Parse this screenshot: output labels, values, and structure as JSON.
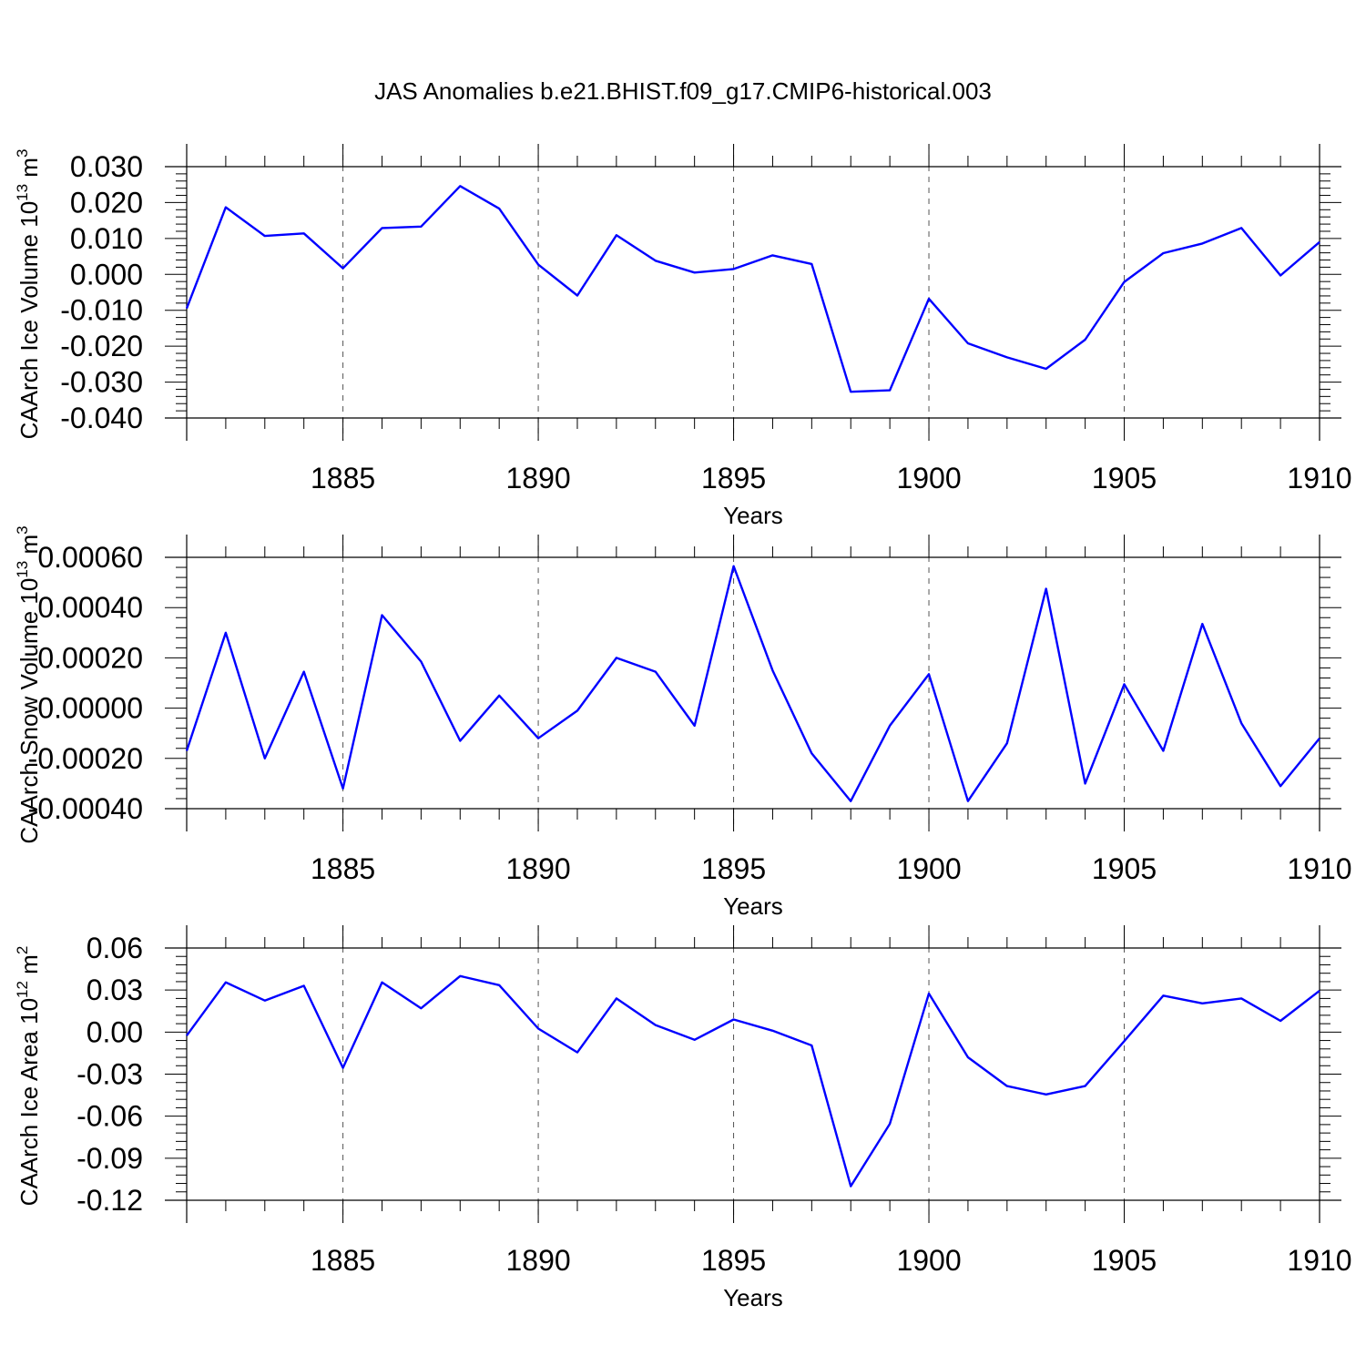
{
  "title": "JAS Anomalies b.e21.BHIST.f09_g17.CMIP6-historical.003",
  "colors": {
    "line": "#0000ff",
    "axis": "#000000",
    "grid": "#555555",
    "background": "#ffffff"
  },
  "chart_data": [
    {
      "type": "line",
      "title": "JAS Anomalies b.e21.BHIST.f09_g17.CMIP6-historical.003",
      "xlabel": "Years",
      "ylabel": "CAArch Ice Volume 10",
      "ylabel_sup": "13",
      "ylabel_unit": " m",
      "ylabel_unit_sup": "3",
      "xlim": [
        1881,
        1910
      ],
      "ylim": [
        -0.04,
        0.03
      ],
      "xticks": [
        "1885",
        "1890",
        "1895",
        "1900",
        "1905",
        "1910"
      ],
      "yticks": [
        "0.030",
        "0.020",
        "0.010",
        "0.000",
        "-0.010",
        "-0.020",
        "-0.030",
        "-0.040"
      ],
      "grid": "vertical dashed at major x ticks",
      "x": [
        1881,
        1882,
        1883,
        1884,
        1885,
        1886,
        1887,
        1888,
        1889,
        1890,
        1891,
        1892,
        1893,
        1894,
        1895,
        1896,
        1897,
        1898,
        1899,
        1900,
        1901,
        1902,
        1903,
        1904,
        1905,
        1906,
        1907,
        1908,
        1909,
        1910
      ],
      "values": [
        -0.0095,
        0.0187,
        0.0107,
        0.0114,
        0.0017,
        0.0129,
        0.0133,
        0.0246,
        0.0183,
        0.0027,
        -0.0059,
        0.0109,
        0.0038,
        0.0005,
        0.0015,
        0.0053,
        0.0029,
        -0.0327,
        -0.0323,
        -0.0068,
        -0.0192,
        -0.0231,
        -0.0263,
        -0.0182,
        -0.0021,
        0.0059,
        0.0086,
        0.0129,
        -0.0003,
        0.009
      ]
    },
    {
      "type": "line",
      "xlabel": "Years",
      "ylabel": "CAArch Snow Volume 10",
      "ylabel_sup": "13",
      "ylabel_unit": " m",
      "ylabel_unit_sup": "3",
      "xlim": [
        1881,
        1910
      ],
      "ylim": [
        -0.0004,
        0.0006
      ],
      "xticks": [
        "1885",
        "1890",
        "1895",
        "1900",
        "1905",
        "1910"
      ],
      "yticks": [
        "0.00060",
        "0.00040",
        "0.00020",
        "0.00000",
        "-0.00020",
        "-0.00040"
      ],
      "grid": "vertical dashed at major x ticks",
      "x": [
        1881,
        1882,
        1883,
        1884,
        1885,
        1886,
        1887,
        1888,
        1889,
        1890,
        1891,
        1892,
        1893,
        1894,
        1895,
        1896,
        1897,
        1898,
        1899,
        1900,
        1901,
        1902,
        1903,
        1904,
        1905,
        1906,
        1907,
        1908,
        1909,
        1910
      ],
      "values": [
        -0.00017,
        0.0003,
        -0.0002,
        0.000145,
        -0.00032,
        0.00037,
        0.000185,
        -0.00013,
        5e-05,
        -0.00012,
        -1e-05,
        0.0002,
        0.000145,
        -7e-05,
        0.000565,
        0.00015,
        -0.00018,
        -0.00037,
        -7e-05,
        0.000135,
        -0.00037,
        -0.00014,
        0.000475,
        -0.0003,
        9.5e-05,
        -0.00017,
        0.000335,
        -6e-05,
        -0.00031,
        -0.00012
      ]
    },
    {
      "type": "line",
      "xlabel": "Years",
      "ylabel": "CAArch Ice Area 10",
      "ylabel_sup": "12",
      "ylabel_unit": " m",
      "ylabel_unit_sup": "2",
      "xlim": [
        1881,
        1910
      ],
      "ylim": [
        -0.12,
        0.06
      ],
      "xticks": [
        "1885",
        "1890",
        "1895",
        "1900",
        "1905",
        "1910"
      ],
      "yticks": [
        "0.06",
        "0.03",
        "0.00",
        "-0.03",
        "-0.06",
        "-0.09",
        "-0.12"
      ],
      "grid": "vertical dashed at major x ticks",
      "x": [
        1881,
        1882,
        1883,
        1884,
        1885,
        1886,
        1887,
        1888,
        1889,
        1890,
        1891,
        1892,
        1893,
        1894,
        1895,
        1896,
        1897,
        1898,
        1899,
        1900,
        1901,
        1902,
        1903,
        1904,
        1905,
        1906,
        1907,
        1908,
        1909,
        1910
      ],
      "values": [
        -0.0025,
        0.0355,
        0.0225,
        0.033,
        -0.0255,
        0.0355,
        0.017,
        0.04,
        0.0335,
        0.0025,
        -0.0145,
        0.024,
        0.005,
        -0.0055,
        0.009,
        0.001,
        -0.0095,
        -0.11,
        -0.0655,
        0.0275,
        -0.018,
        -0.0385,
        -0.0445,
        -0.0385,
        -0.0065,
        0.026,
        0.0205,
        0.024,
        0.008,
        0.0295
      ]
    }
  ]
}
